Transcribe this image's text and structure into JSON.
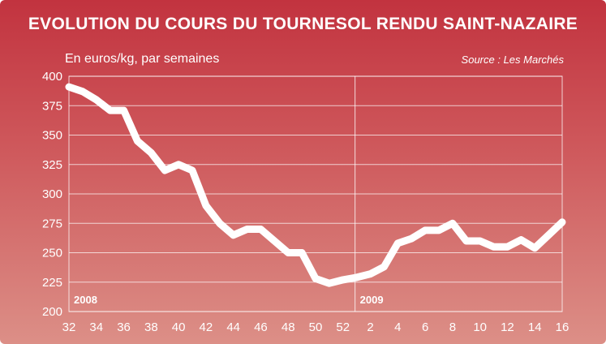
{
  "chart_data": {
    "type": "line",
    "title": "EVOLUTION DU COURS DU TOURNESOL RENDU SAINT-NAZAIRE",
    "subtitle": "En euros/kg, par semaines",
    "source": "Source : Les Marchés",
    "colors": {
      "line": "#ffffff",
      "background_top": "#c2333f",
      "background_bottom": "#dc8f87"
    },
    "grid": true,
    "ylim": [
      200,
      400
    ],
    "yticks": [
      "400",
      "375",
      "350",
      "325",
      "300",
      "275",
      "250",
      "225",
      "200"
    ],
    "xticks": [
      "32",
      "34",
      "36",
      "38",
      "40",
      "42",
      "44",
      "46",
      "48",
      "50",
      "52",
      "2",
      "4",
      "6",
      "8",
      "10",
      "12",
      "14",
      "16"
    ],
    "year_labels": [
      "2008",
      "2009"
    ],
    "series": [
      {
        "x": [
          "32",
          "33",
          "34",
          "35",
          "36",
          "37",
          "38",
          "39",
          "40",
          "41",
          "42",
          "43",
          "44",
          "45",
          "46",
          "47",
          "48",
          "49",
          "50",
          "51",
          "52",
          "1",
          "2",
          "3",
          "4",
          "5",
          "6",
          "7",
          "8",
          "9",
          "10",
          "11",
          "12",
          "13",
          "14",
          "15",
          "16"
        ],
        "values": [
          391,
          387,
          380,
          371,
          371,
          345,
          335,
          320,
          325,
          320,
          290,
          275,
          265,
          270,
          270,
          260,
          250,
          250,
          228,
          224,
          227,
          229,
          232,
          238,
          258,
          262,
          269,
          269,
          275,
          260,
          260,
          255,
          255,
          261,
          254,
          265,
          276
        ]
      }
    ]
  }
}
